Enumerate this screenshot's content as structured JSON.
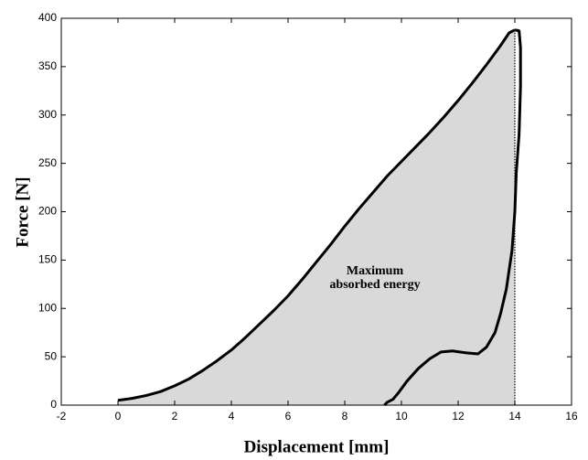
{
  "chart_data": {
    "type": "line",
    "xlabel": "Displacement [mm]",
    "ylabel": "Force [N]",
    "annotation": [
      "Maximum",
      "absorbed energy"
    ],
    "xlim": [
      -2,
      16
    ],
    "xticks": [
      -2,
      0,
      2,
      4,
      6,
      8,
      10,
      12,
      14,
      16
    ],
    "ylim": [
      0,
      400
    ],
    "yticks": [
      0,
      50,
      100,
      150,
      200,
      250,
      300,
      350,
      400
    ],
    "series": [
      {
        "color": "#000000",
        "fill": "#d9d9d9",
        "x": [
          0,
          0.5,
          1,
          1.5,
          2,
          2.5,
          3,
          3.5,
          4,
          4.5,
          5,
          5.5,
          6,
          6.5,
          7,
          7.5,
          8,
          8.5,
          9,
          9.5,
          10,
          10.5,
          11,
          11.5,
          12,
          12.5,
          13,
          13.5,
          13.8,
          14
        ],
        "values": [
          5,
          7,
          10,
          14,
          20,
          27,
          36,
          46,
          57,
          70,
          84,
          98,
          113,
          130,
          148,
          166,
          185,
          203,
          220,
          237,
          252,
          267,
          282,
          298,
          315,
          333,
          352,
          372,
          385,
          388
        ]
      },
      {
        "color": "#000000",
        "x": [
          14,
          14.15,
          14.2,
          14.2,
          14.15,
          14.05,
          14,
          13.9,
          13.7,
          13.5,
          13.3,
          13,
          12.7,
          12.3,
          11.8,
          11.4,
          11,
          10.6,
          10.2,
          9.9,
          9.7,
          9.5,
          9.4
        ],
        "values": [
          388,
          387,
          370,
          330,
          280,
          240,
          200,
          160,
          120,
          95,
          75,
          60,
          53,
          54,
          56,
          55,
          48,
          38,
          25,
          13,
          6,
          3,
          0
        ]
      }
    ]
  }
}
